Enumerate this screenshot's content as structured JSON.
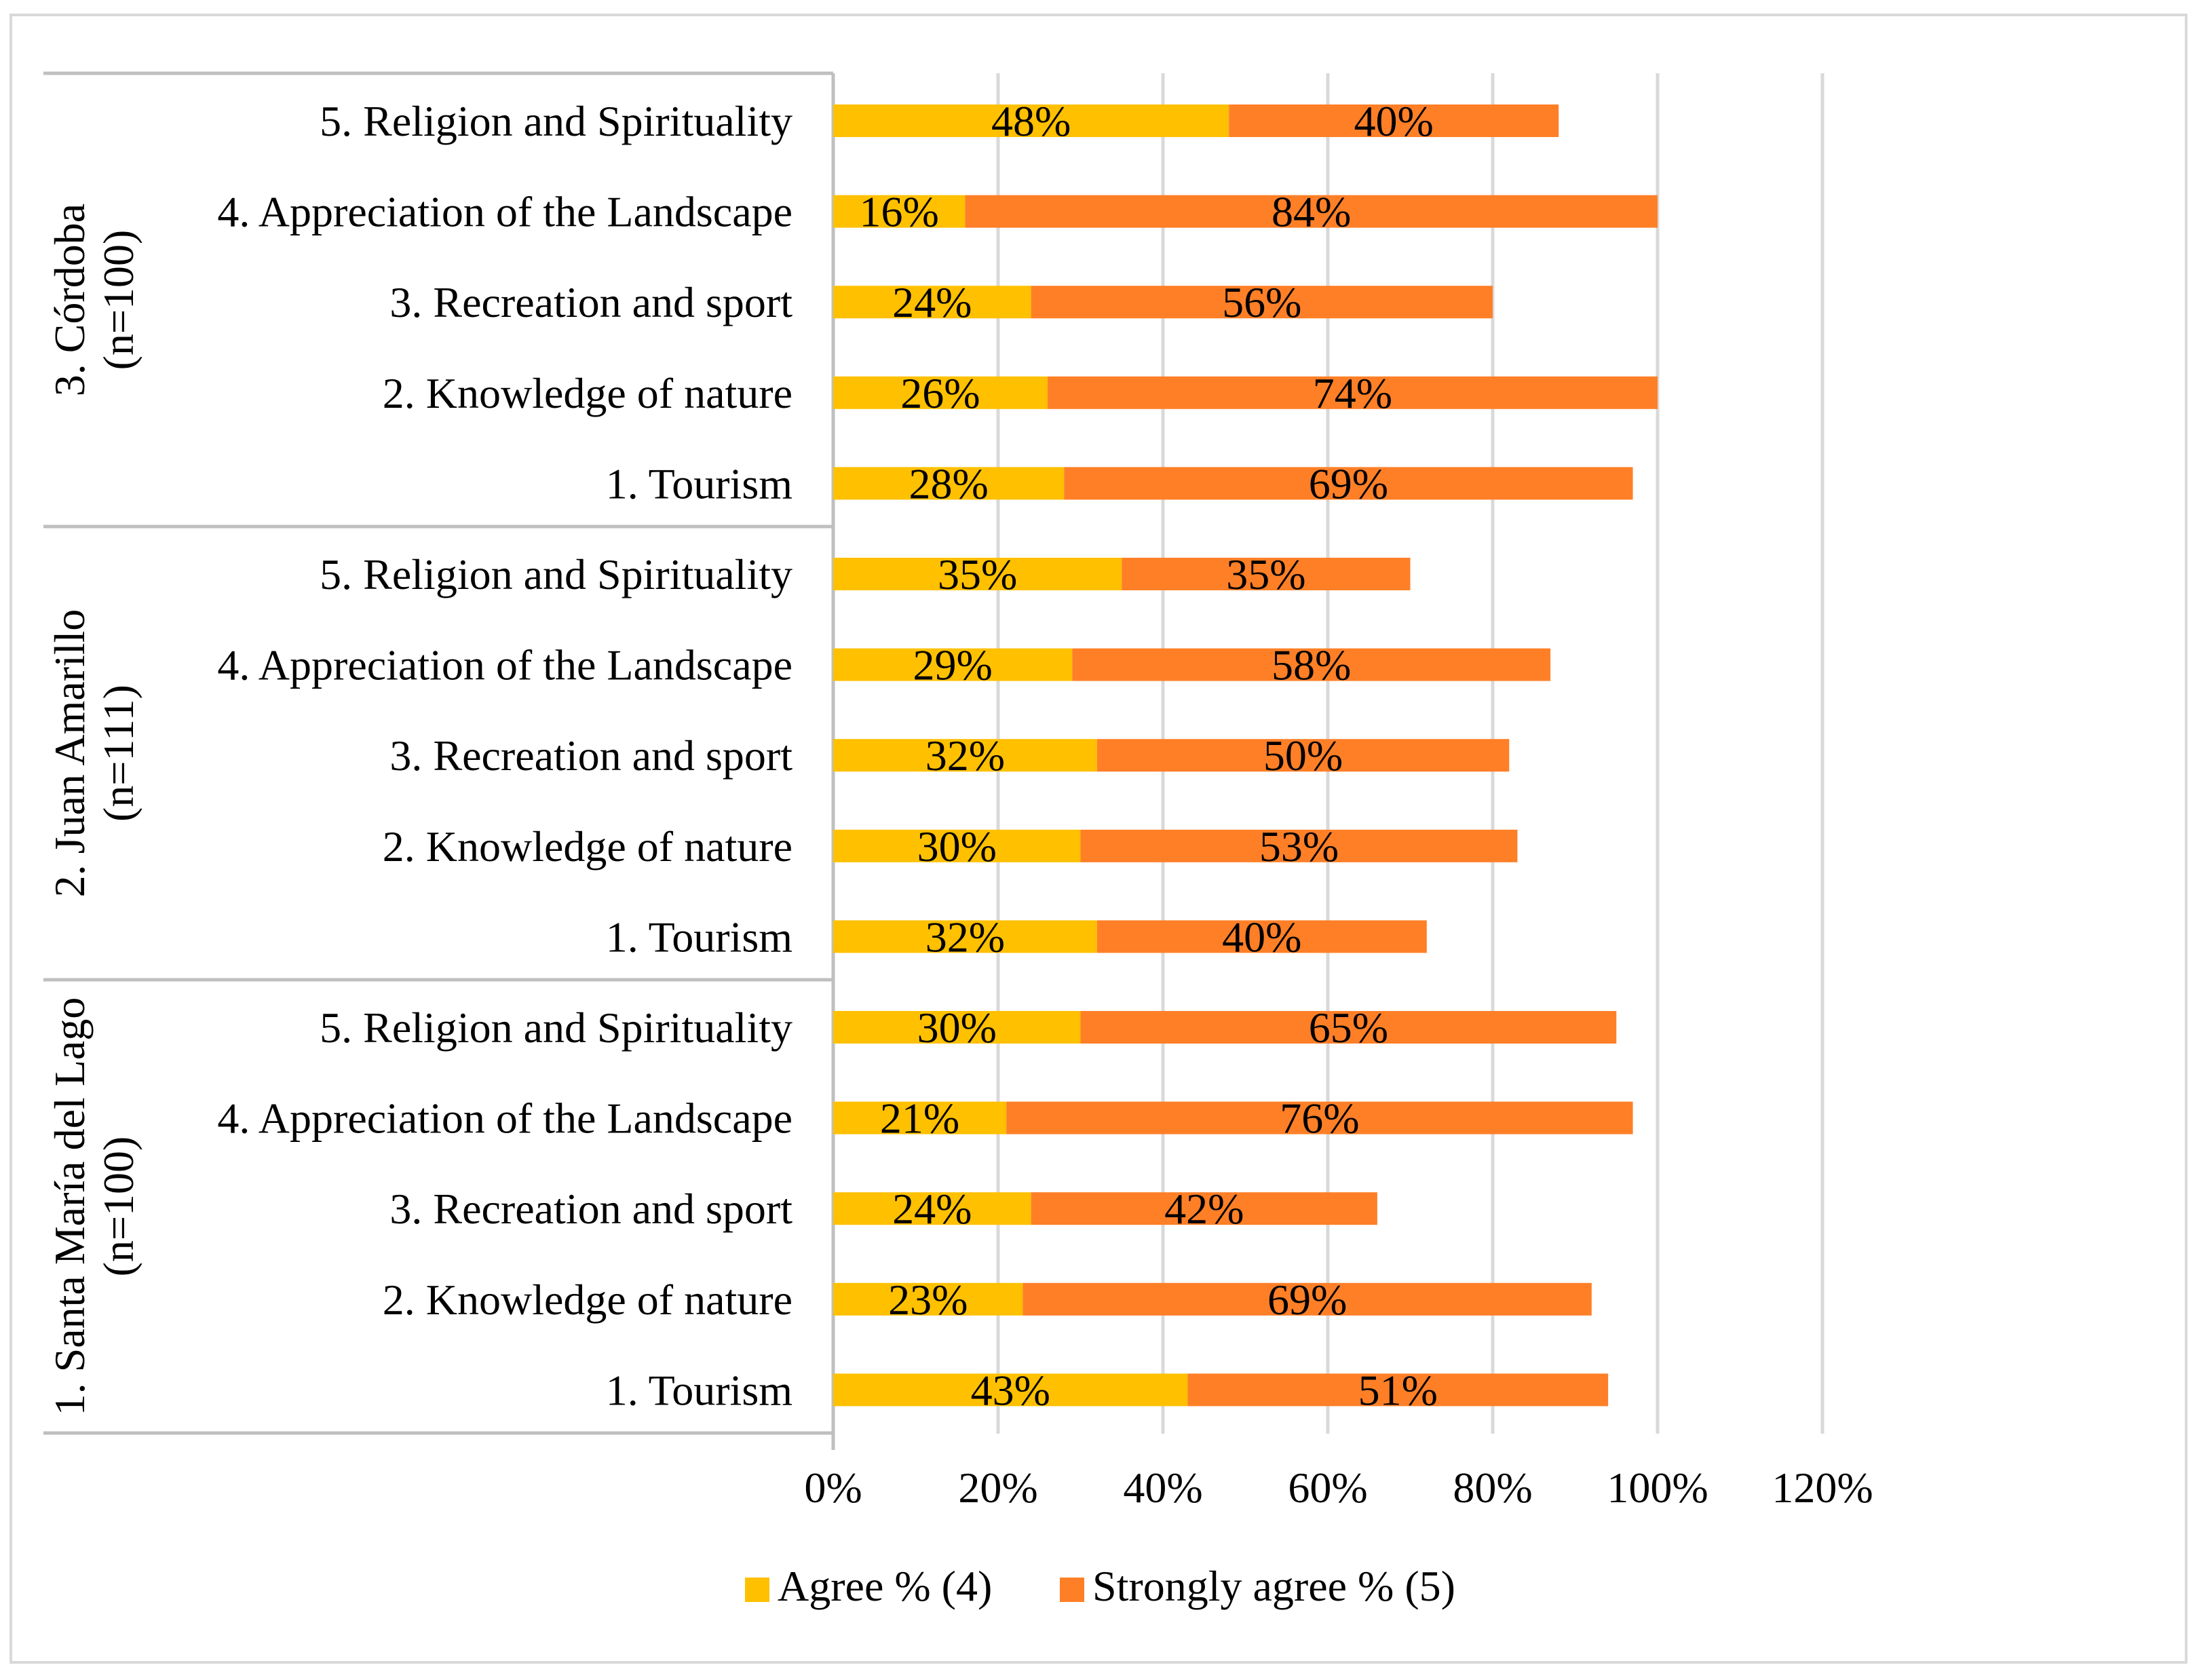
{
  "chart_data": {
    "type": "bar",
    "orientation": "horizontal",
    "stacked": true,
    "title": "",
    "xlabel": "",
    "ylabel": "",
    "xlim": [
      0,
      120
    ],
    "x_ticks": [
      "0%",
      "20%",
      "40%",
      "60%",
      "80%",
      "100%",
      "120%"
    ],
    "grid": true,
    "legend_position": "bottom",
    "series": [
      {
        "name": "Agree % (4)",
        "color": "#FFC000"
      },
      {
        "name": "Strongly agree % (5)",
        "color": "#FF7F27"
      }
    ],
    "groups": [
      {
        "label_line1": "3. Córdoba",
        "label_line2": "(n=100)",
        "categories": [
          {
            "label": "5. Religion and Spirituality",
            "values": [
              48,
              40
            ],
            "labels": [
              "48%",
              "40%"
            ]
          },
          {
            "label": "4. Appreciation of the Landscape",
            "values": [
              16,
              84
            ],
            "labels": [
              "16%",
              "84%"
            ]
          },
          {
            "label": "3. Recreation and sport",
            "values": [
              24,
              56
            ],
            "labels": [
              "24%",
              "56%"
            ]
          },
          {
            "label": "2. Knowledge of nature",
            "values": [
              26,
              74
            ],
            "labels": [
              "26%",
              "74%"
            ]
          },
          {
            "label": "1. Tourism",
            "values": [
              28,
              69
            ],
            "labels": [
              "28%",
              "69%"
            ]
          }
        ]
      },
      {
        "label_line1": "2. Juan Amarillo",
        "label_line2": "(n=111)",
        "categories": [
          {
            "label": "5. Religion and Spirituality",
            "values": [
              35,
              35
            ],
            "labels": [
              "35%",
              "35%"
            ]
          },
          {
            "label": "4. Appreciation of the Landscape",
            "values": [
              29,
              58
            ],
            "labels": [
              "29%",
              "58%"
            ]
          },
          {
            "label": "3. Recreation and sport",
            "values": [
              32,
              50
            ],
            "labels": [
              "32%",
              "50%"
            ]
          },
          {
            "label": "2. Knowledge of nature",
            "values": [
              30,
              53
            ],
            "labels": [
              "30%",
              "53%"
            ]
          },
          {
            "label": "1. Tourism",
            "values": [
              32,
              40
            ],
            "labels": [
              "32%",
              "40%"
            ]
          }
        ]
      },
      {
        "label_line1": "1. Santa María del Lago",
        "label_line2": "(n=100)",
        "categories": [
          {
            "label": "5. Religion and Spirituality",
            "values": [
              30,
              65
            ],
            "labels": [
              "30%",
              "65%"
            ]
          },
          {
            "label": "4. Appreciation of the Landscape",
            "values": [
              21,
              76
            ],
            "labels": [
              "21%",
              "76%"
            ]
          },
          {
            "label": "3. Recreation and sport",
            "values": [
              24,
              42
            ],
            "labels": [
              "24%",
              "42%"
            ]
          },
          {
            "label": "2. Knowledge of nature",
            "values": [
              23,
              69
            ],
            "labels": [
              "23%",
              "69%"
            ]
          },
          {
            "label": "1. Tourism",
            "values": [
              43,
              51
            ],
            "labels": [
              "43%",
              "51%"
            ]
          }
        ]
      }
    ]
  }
}
